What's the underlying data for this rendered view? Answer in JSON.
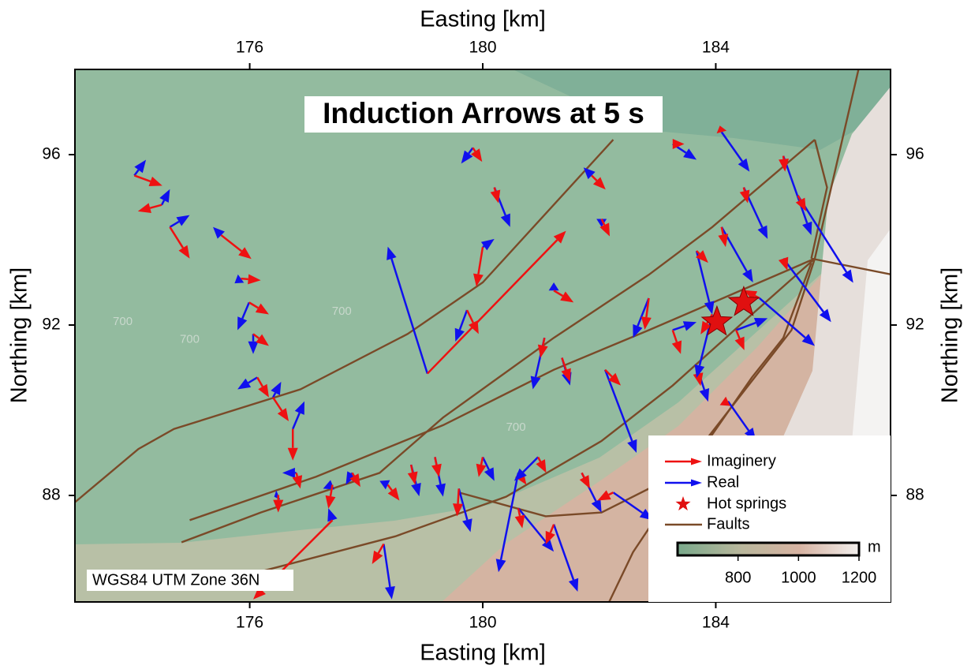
{
  "chart_data": {
    "type": "arrow-map",
    "title": "Induction Arrows at 5 s",
    "x_label": "Easting [km]",
    "y_label": "Northing [km]",
    "projection": "WGS84 UTM Zone 36N",
    "xlim": [
      173,
      187
    ],
    "ylim": [
      85.5,
      98
    ],
    "xticks": [
      176,
      180,
      184
    ],
    "yticks": [
      88,
      92,
      96
    ],
    "legend": "lower right",
    "sites": {
      "x": [
        174.02,
        174.49,
        174.63,
        175.51,
        175.85,
        175.99,
        176.06,
        176.13,
        176.4,
        176.74,
        176.8,
        176.49,
        177.42,
        177.76,
        178.37,
        178.77,
        179.18,
        179.59,
        180.0,
        180.61,
        180.95,
        181.7,
        182.24,
        180.61,
        181.22,
        178.3,
        177.42,
        179.05,
        179.83,
        180.2,
        180.0,
        179.73,
        181.22,
        181.06,
        181.36,
        181.87,
        182.04,
        182.1,
        182.85,
        183.26,
        184.1,
        184.48,
        185.16,
        185.41,
        184.1,
        183.67,
        185.16,
        184.75,
        183.67,
        183.94,
        184.35,
        183.26,
        184.21
      ],
      "y": [
        95.51,
        94.82,
        94.3,
        94.11,
        93.09,
        92.53,
        91.79,
        90.77,
        90.3,
        89.56,
        88.53,
        88.01,
        88.25,
        88.53,
        88.25,
        88.72,
        88.9,
        88.16,
        88.9,
        88.53,
        88.9,
        88.53,
        88.07,
        87.7,
        87.32,
        86.86,
        87.42,
        90.86,
        96.16,
        95.23,
        93.83,
        92.35,
        92.81,
        91.7,
        91.23,
        95.51,
        94.49,
        90.95,
        92.63,
        96.25,
        96.53,
        95.23,
        95.97,
        95.04,
        94.3,
        93.74,
        93.56,
        92.63,
        91.04,
        92.25,
        91.88,
        91.88,
        90.21
      ]
    },
    "series": [
      {
        "name": "Imaginery",
        "color": "#ee1111",
        "dx": [
          0.48,
          -0.41,
          0.34,
          0.52,
          0.34,
          0.34,
          0.27,
          0.2,
          0.27,
          0,
          0.07,
          0,
          -0.07,
          0.14,
          0.2,
          0.07,
          0.07,
          -0.03,
          -0.07,
          0.14,
          0.14,
          0.14,
          -0.27,
          0.07,
          -0.14,
          -0.2,
          -1.36,
          2.38,
          0.16,
          0.07,
          -0.11,
          0.2,
          0.34,
          -0.07,
          0.14,
          0.24,
          0.14,
          0.27,
          -0.07,
          0.2,
          -0.03,
          0.07,
          0.03,
          0.14,
          0.07,
          0.2,
          0.07,
          -0.27,
          0.07,
          -0.2,
          0.14,
          0.14,
          -0.14
        ],
        "dy": [
          -0.24,
          -0.15,
          -0.74,
          -0.56,
          -0.04,
          -0.28,
          -0.28,
          -0.47,
          -0.56,
          -0.74,
          -0.37,
          -0.41,
          -0.56,
          -0.33,
          -0.37,
          -0.47,
          -0.47,
          -0.65,
          -0.47,
          -0.28,
          -0.37,
          -0.37,
          -0.19,
          -0.47,
          -0.47,
          -0.47,
          -1.86,
          3.35,
          -0.33,
          -0.37,
          -0.93,
          -0.56,
          -0.28,
          -0.47,
          -0.56,
          -0.33,
          -0.41,
          -0.37,
          -0.74,
          0,
          0.15,
          -0.37,
          -0.37,
          -0.37,
          -0.47,
          -0.28,
          -0.28,
          0.19,
          -0.47,
          -0.47,
          -0.47,
          -0.56,
          -0.09
        ]
      },
      {
        "name": "Real",
        "color": "#1010ee",
        "dx": [
          0.2,
          0.14,
          0.34,
          -0.14,
          -0.11,
          -0.2,
          0,
          -0.34,
          0.14,
          0.2,
          -0.24,
          -0.07,
          -0.16,
          -0.11,
          -0.14,
          0.14,
          0.14,
          0.2,
          0.2,
          -0.34,
          -0.41,
          0.34,
          0.68,
          0.61,
          0.41,
          0.14,
          -0.07,
          -0.68,
          -0.2,
          0.27,
          0.2,
          -0.2,
          0,
          -0.2,
          0.14,
          -0.14,
          0,
          0.54,
          -0.27,
          0.41,
          0.48,
          0.41,
          0.48,
          0.95,
          0.54,
          0.27,
          0.82,
          0.95,
          0.2,
          -0.27,
          0.54,
          0.41,
          0.48
        ],
        "dy": [
          0.37,
          0.37,
          0.28,
          0.19,
          -0.11,
          -0.65,
          -0.47,
          -0.28,
          0.37,
          0.65,
          0,
          -0.04,
          -0.09,
          -0.28,
          0.09,
          -0.74,
          -0.93,
          -1.02,
          -0.56,
          -2.33,
          -0.56,
          -0.93,
          -0.65,
          -1.02,
          -1.58,
          -1.3,
          0.28,
          2.98,
          -0.37,
          -0.93,
          0.19,
          -0.74,
          0.19,
          -1.21,
          -0.65,
          0.19,
          -0.19,
          -1.95,
          -0.93,
          -0.37,
          -0.93,
          -1.21,
          -1.86,
          -2.05,
          -1.3,
          -1.49,
          -1.49,
          -1.12,
          -0.84,
          -1.49,
          0.28,
          0.19,
          -0.93
        ]
      }
    ],
    "hot_springs": {
      "name": "Hot springs",
      "color": "#e01010",
      "x": [
        184.02,
        184.48
      ],
      "y": [
        92.07,
        92.53
      ]
    },
    "faults": {
      "name": "Faults",
      "color": "#7a4a28",
      "lines": [
        {
          "x": [
            173,
            174.09,
            174.7,
            176.87,
            178.71,
            180.0,
            182.24
          ],
          "y": [
            87.84,
            89.09,
            89.56,
            90.49,
            91.79,
            93.0,
            96.35
          ]
        },
        {
          "x": [
            174.83,
            176.19,
            178.23,
            179.32,
            181.22,
            182.85,
            183.94,
            185.7
          ],
          "y": [
            86.9,
            87.6,
            88.53,
            89.83,
            91.7,
            93.18,
            94.3,
            96.35
          ]
        },
        {
          "x": [
            174.97,
            177.14,
            179.32,
            181.22,
            182.85,
            184.75,
            185.7
          ],
          "y": [
            87.42,
            88.44,
            89.65,
            90.95,
            91.88,
            93.0,
            93.56
          ]
        },
        {
          "x": [
            175.11,
            178.5,
            180.4,
            182.04,
            183.26,
            184.62,
            185.7
          ],
          "y": [
            85.83,
            87.04,
            87.97,
            89.28,
            90.58,
            92.25,
            93.56
          ]
        },
        {
          "x": [
            179.59,
            181.08,
            182.04,
            183.39,
            185.3,
            185.7
          ],
          "y": [
            88.07,
            87.51,
            87.6,
            88.53,
            91.88,
            93.56
          ]
        },
        {
          "x": [
            185.64,
            187.0
          ],
          "y": [
            93.56,
            93.19
          ]
        },
        {
          "x": [
            185.7,
            185.91,
            185.64
          ],
          "y": [
            96.35,
            95.23,
            93.56
          ]
        },
        {
          "x": [
            185.7,
            186.45
          ],
          "y": [
            93.56,
            98.0
          ]
        },
        {
          "x": [
            185.64,
            185.16,
            184.62,
            183.67,
            182.58,
            182.17
          ],
          "y": [
            93.46,
            91.7,
            90.77,
            88.9,
            86.67,
            85.5
          ]
        }
      ]
    },
    "contour_labels": [
      {
        "text": "700",
        "x": 173.82,
        "y": 92.07
      },
      {
        "text": "700",
        "x": 174.97,
        "y": 91.66
      },
      {
        "text": "700",
        "x": 177.58,
        "y": 92.31
      },
      {
        "text": "700",
        "x": 180.57,
        "y": 89.59
      }
    ],
    "colorbar": {
      "label": "m",
      "lim": [
        600,
        1200
      ],
      "ticks": [
        800,
        1000,
        1200
      ]
    }
  }
}
